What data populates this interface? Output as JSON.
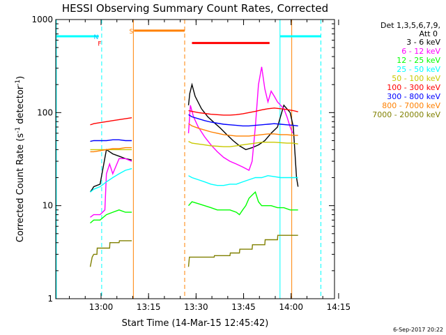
{
  "chart_data": {
    "type": "line",
    "title": "HESSI Observing Summary Count Rates, Corrected",
    "xlabel": "Start Time (14-Mar-15 12:45:42)",
    "ylabel": "Corrected Count Rate (s",
    "ylabel_sup1": "-1",
    "ylabel_mid": " detector",
    "ylabel_sup2": "-1",
    "ylabel_end": ")",
    "footer": "6-Sep-2017 20:22",
    "x_unit": "minutes since 12:45:42",
    "xlim": [
      0,
      88
    ],
    "ylim": [
      1,
      1000
    ],
    "y_scale": "log",
    "x_ticks": [
      {
        "label": "13:00",
        "value": 14.3
      },
      {
        "label": "13:15",
        "value": 29.3
      },
      {
        "label": "13:30",
        "value": 44.3
      },
      {
        "label": "13:45",
        "value": 59.3
      },
      {
        "label": "14:00",
        "value": 74.3
      },
      {
        "label": "14:15",
        "value": 89.3
      }
    ],
    "y_ticks": [
      {
        "label": "1",
        "value": 1
      },
      {
        "label": "10",
        "value": 10
      },
      {
        "label": "100",
        "value": 100
      },
      {
        "label": "1000",
        "value": 1000
      }
    ],
    "legend": {
      "header1": "Det 1,3,5,6,7,9,",
      "header2": "Att 0",
      "placement": "right"
    },
    "flags": [
      {
        "label": "F",
        "color": "#ff0000",
        "x": [
          14.5,
          17.6
        ],
        "y": 560
      },
      {
        "label": "N",
        "color": "#00c8ff",
        "x": [
          13.4,
          13.4
        ],
        "y": 660
      },
      {
        "label": "S",
        "color": "#ff8000",
        "x": [
          24.5,
          40.5
        ],
        "y": 760
      }
    ],
    "orbit_bars": [
      {
        "color": "#00ffff",
        "x": [
          0,
          13.6
        ],
        "y": 660
      },
      {
        "color": "#ff8000",
        "x": [
          24.7,
          40.7
        ],
        "y": 760
      },
      {
        "color": "#ff0000",
        "x": [
          43,
          67.5
        ],
        "y": 560
      },
      {
        "color": "#00ffff",
        "x": [
          70.8,
          83.7
        ],
        "y": 660
      }
    ],
    "vlines": [
      {
        "x": 0.2,
        "color": "#00ffff",
        "dashed": false
      },
      {
        "x": 14.5,
        "color": "#00ffff",
        "dashed": true
      },
      {
        "x": 24.5,
        "color": "#ff8000",
        "dashed": false
      },
      {
        "x": 40.7,
        "color": "#ff8000",
        "dashed": true
      },
      {
        "x": 70.8,
        "color": "#00ffff",
        "dashed": false
      },
      {
        "x": 74.5,
        "color": "#ff8000",
        "dashed": false
      },
      {
        "x": 83.7,
        "color": "#00ffff",
        "dashed": true
      }
    ],
    "series": [
      {
        "name": "3 - 6 keV",
        "color": "#000000",
        "segments": [
          {
            "x": [
              10.9,
              11.5,
              12.0,
              14.0,
              16.0,
              17.0,
              18.0,
              20.0,
              22.0,
              24.0
            ],
            "y": [
              14,
              15,
              16,
              17,
              40,
              38,
              36,
              34,
              32,
              31
            ]
          },
          {
            "x": [
              41.9,
              42.3,
              43,
              44,
              46,
              48,
              50,
              52,
              54,
              56,
              58,
              60,
              62,
              64,
              66,
              68,
              70,
              72,
              74,
              75,
              76,
              76.5
            ],
            "y": [
              120,
              160,
              200,
              150,
              110,
              90,
              78,
              68,
              58,
              50,
              44,
              40,
              42,
              45,
              50,
              60,
              70,
              120,
              100,
              70,
              20,
              16
            ]
          }
        ]
      },
      {
        "name": "6 - 12 keV",
        "color": "#ff00ff",
        "segments": [
          {
            "x": [
              10.9,
              12.0,
              14.0,
              15.5,
              16.0,
              17.0,
              18.0,
              20.0,
              22.0,
              24.0
            ],
            "y": [
              7.5,
              8,
              8,
              9,
              22,
              28,
              22,
              32,
              32,
              30
            ]
          },
          {
            "x": [
              41.9,
              42.5,
              43.5,
              45,
              47,
              49,
              51,
              53,
              55,
              57,
              59,
              61,
              62,
              63,
              64,
              65,
              66,
              67,
              68,
              69,
              70,
              71,
              72,
              73,
              74,
              74.8
            ],
            "y": [
              60,
              120,
              90,
              70,
              55,
              45,
              38,
              33,
              30,
              28,
              26,
              24,
              30,
              70,
              200,
              310,
              180,
              130,
              170,
              150,
              130,
              120,
              110,
              90,
              70,
              60
            ]
          }
        ]
      },
      {
        "name": "12 - 25 keV",
        "color": "#00ff00",
        "segments": [
          {
            "x": [
              10.9,
              12,
              14,
              16,
              18,
              20,
              22,
              24
            ],
            "y": [
              6.5,
              7,
              7,
              8,
              8.5,
              9,
              8.5,
              8.5
            ]
          },
          {
            "x": [
              41.9,
              43,
              45,
              47,
              49,
              51,
              53,
              55,
              57,
              58,
              59,
              60,
              61,
              62,
              63,
              64,
              65,
              66,
              68,
              70,
              72,
              74,
              76,
              76.5
            ],
            "y": [
              10,
              11,
              10.5,
              10,
              9.5,
              9,
              9,
              9,
              8.5,
              8,
              9,
              10,
              12,
              13,
              14,
              11,
              10,
              10,
              10,
              9.5,
              9.5,
              9,
              9,
              9
            ]
          }
        ]
      },
      {
        "name": "25 - 50 keV",
        "color": "#00ffff",
        "segments": [
          {
            "x": [
              10.9,
              12,
              13,
              14,
              16,
              18,
              20,
              22,
              24
            ],
            "y": [
              14,
              15,
              15.5,
              16,
              18,
              20,
              22,
              24,
              25
            ]
          },
          {
            "x": [
              41.9,
              43,
              45,
              47,
              49,
              51,
              53,
              55,
              57,
              59,
              61,
              63,
              65,
              67,
              69,
              71,
              73,
              75,
              76.5
            ],
            "y": [
              21,
              20,
              19,
              18,
              17,
              16.5,
              16.5,
              17,
              17,
              18,
              19,
              20,
              20,
              21,
              20.5,
              20,
              20,
              20,
              20
            ]
          }
        ]
      },
      {
        "name": "50 - 100 keV",
        "color": "#c8c800",
        "segments": [
          {
            "x": [
              10.9,
              24
            ],
            "y": [
              40,
              40
            ]
          },
          {
            "x": [
              41.9,
              43,
              45,
              47,
              49,
              51,
              53,
              55,
              57,
              59,
              61,
              63,
              65,
              67,
              69,
              71,
              73,
              75,
              76.5
            ],
            "y": [
              49,
              47,
              46,
              45,
              44,
              43.5,
              43,
              43,
              44,
              45,
              46,
              47,
              48,
              48,
              48,
              47.5,
              47,
              47,
              46
            ]
          }
        ]
      },
      {
        "name": "100 - 300 keV",
        "color": "#ff0000",
        "segments": [
          {
            "x": [
              10.9,
              11.5,
              12,
              14,
              16,
              18,
              20,
              22,
              24
            ],
            "y": [
              74,
              75,
              76,
              78,
              80,
              82,
              84,
              86,
              88
            ]
          },
          {
            "x": [
              41.9,
              43,
              45,
              47,
              49,
              51,
              53,
              55,
              57,
              59,
              61,
              63,
              65,
              67,
              69,
              71,
              73,
              75,
              76.5
            ],
            "y": [
              105,
              103,
              100,
              98,
              96,
              95,
              94,
              94,
              95,
              97,
              100,
              103,
              107,
              110,
              112,
              110,
              108,
              105,
              102
            ]
          }
        ]
      },
      {
        "name": "300 - 800 keV",
        "color": "#0000ff",
        "segments": [
          {
            "x": [
              10.9,
              12,
              14,
              16,
              18,
              20,
              22,
              24
            ],
            "y": [
              49,
              50,
              50,
              50,
              51,
              51,
              50,
              50
            ]
          },
          {
            "x": [
              41.9,
              43,
              45,
              47,
              49,
              51,
              53,
              55,
              57,
              59,
              61,
              63,
              65,
              67,
              69,
              71,
              73,
              75,
              76.5
            ],
            "y": [
              95,
              90,
              86,
              82,
              79,
              77,
              75,
              74,
              73,
              72,
              72,
              73,
              74,
              75,
              76,
              75,
              74,
              73,
              72
            ]
          }
        ]
      },
      {
        "name": "800 - 7000 keV",
        "color": "#ff8000",
        "segments": [
          {
            "x": [
              10.9,
              12,
              14,
              16,
              18,
              20,
              22,
              24
            ],
            "y": [
              38,
              38,
              39,
              40,
              41,
              41,
              42,
              42
            ]
          },
          {
            "x": [
              41.9,
              43,
              45,
              47,
              49,
              51,
              53,
              55,
              57,
              59,
              61,
              63,
              65,
              67,
              69,
              71,
              73,
              75,
              76.5
            ],
            "y": [
              76,
              72,
              68,
              65,
              62,
              60,
              58,
              57,
              56,
              56,
              56,
              57,
              58,
              59,
              59,
              58,
              58,
              57,
              57
            ]
          }
        ]
      },
      {
        "name": "7000 - 20000 keV",
        "color": "#808000",
        "segments": [
          {
            "x": [
              10.9,
              11.5,
              12,
              13,
              13.1,
              17,
              17.1,
              20,
              20.1,
              24
            ],
            "y": [
              2.2,
              2.8,
              3,
              3,
              3.5,
              3.5,
              4,
              4,
              4.2,
              4.2
            ]
          },
          {
            "x": [
              41.9,
              42.2,
              50,
              50.1,
              55,
              55.1,
              58,
              58.1,
              62,
              62.1,
              66,
              66.1,
              70,
              70.1,
              76.5
            ],
            "y": [
              2.2,
              2.8,
              2.8,
              2.9,
              2.9,
              3.1,
              3.1,
              3.4,
              3.4,
              3.8,
              3.8,
              4.3,
              4.3,
              4.8,
              4.8
            ]
          }
        ]
      }
    ]
  }
}
